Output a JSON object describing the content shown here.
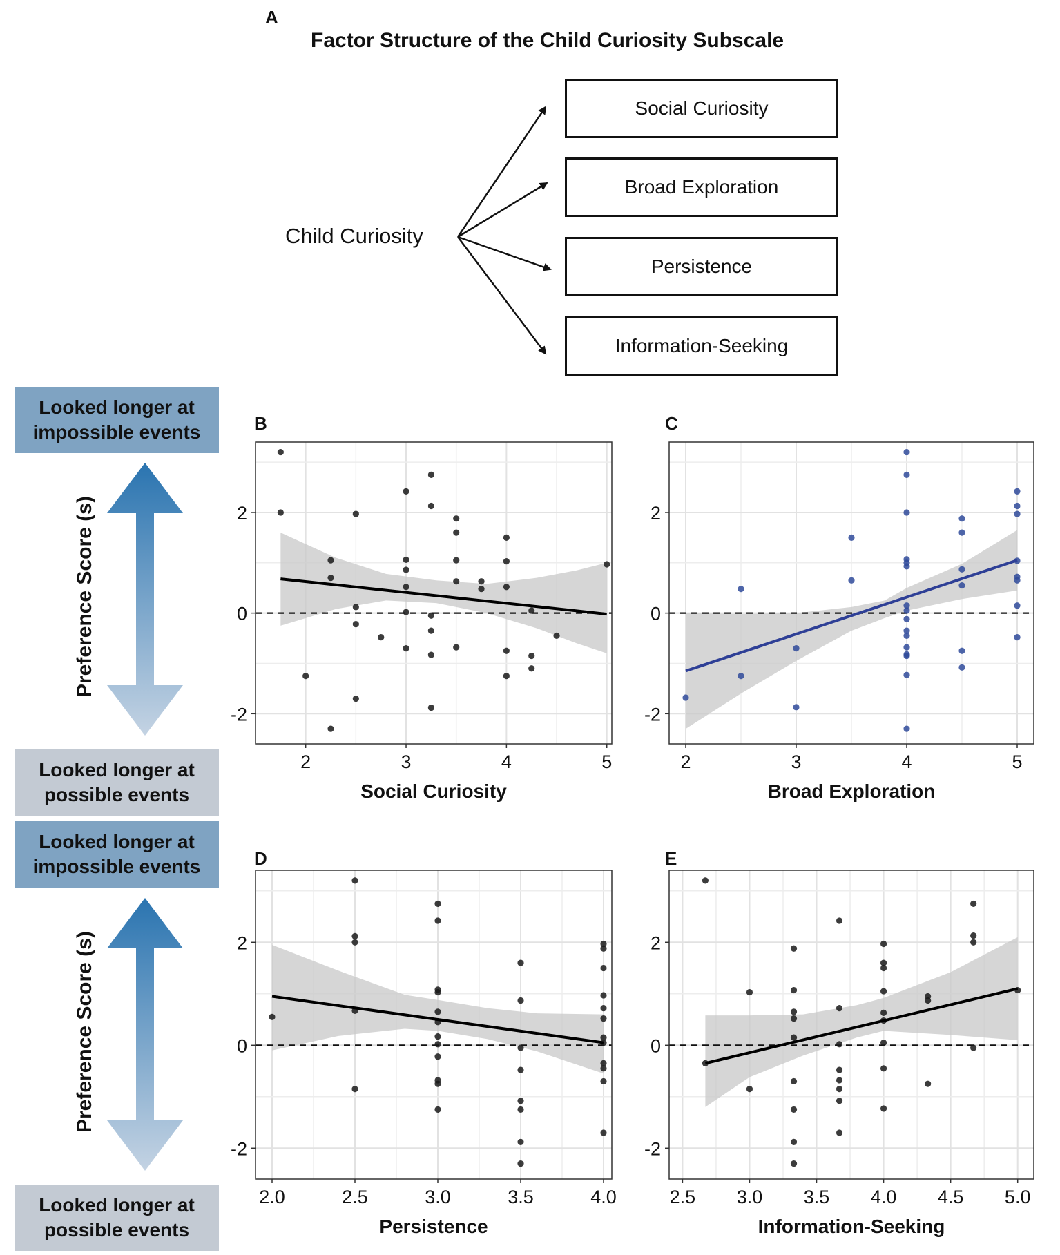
{
  "panel_a": {
    "letter": "A",
    "title": "Factor Structure of the Child Curiosity Subscale",
    "root": "Child Curiosity",
    "factors": [
      "Social Curiosity",
      "Broad Exploration",
      "Persistence",
      "Information-Seeking"
    ]
  },
  "side_labels": {
    "impossible": "Looked longer at\nimpossible events",
    "possible": "Looked longer at\npossible events",
    "y_axis": "Preference Score (s)"
  },
  "colors": {
    "point_black": "#1a1a1a",
    "point_blue": "#2f4a9a",
    "line_black": "#000000",
    "line_blue": "#2e3f96",
    "ribbon": "#c8c8c8",
    "arrow_top": "#2a74b0",
    "arrow_bottom": "#c4d3e3",
    "box_impossible": "#7fa3c2",
    "box_possible": "#c3cad3"
  },
  "chart_data": [
    {
      "panel": "B",
      "type": "scatter",
      "xlabel": "Social Curiosity",
      "ylabel": "Preference Score (s)",
      "xlim": [
        1.5,
        5.05
      ],
      "ylim": [
        -2.6,
        3.4
      ],
      "xticks": [
        2,
        3,
        4,
        5
      ],
      "xtick_labels": [
        "2",
        "3",
        "4",
        "5"
      ],
      "yticks": [
        -2,
        0,
        2
      ],
      "ytick_labels": [
        "-2",
        "0",
        "2"
      ],
      "color": "black",
      "trend": {
        "x1": 1.75,
        "y1": 0.68,
        "x2": 5.0,
        "y2": -0.02
      },
      "ribbon": {
        "x": [
          1.75,
          2.3,
          2.8,
          3.3,
          3.8,
          4.3,
          4.7,
          5.0
        ],
        "lower": [
          -0.25,
          0.08,
          0.25,
          0.2,
          0.0,
          -0.3,
          -0.6,
          -0.8
        ],
        "upper": [
          1.6,
          1.1,
          0.78,
          0.65,
          0.58,
          0.7,
          0.85,
          1.0
        ]
      },
      "points": [
        {
          "x": 1.75,
          "y": 3.2
        },
        {
          "x": 1.75,
          "y": 2.0
        },
        {
          "x": 2.0,
          "y": -1.25
        },
        {
          "x": 2.25,
          "y": 1.05
        },
        {
          "x": 2.25,
          "y": 0.7
        },
        {
          "x": 2.25,
          "y": -2.3
        },
        {
          "x": 2.5,
          "y": 1.97
        },
        {
          "x": 2.5,
          "y": 0.12
        },
        {
          "x": 2.5,
          "y": -0.22
        },
        {
          "x": 2.5,
          "y": -1.7
        },
        {
          "x": 2.75,
          "y": -0.48
        },
        {
          "x": 3.0,
          "y": 2.42
        },
        {
          "x": 3.0,
          "y": 1.06
        },
        {
          "x": 3.0,
          "y": 0.86
        },
        {
          "x": 3.0,
          "y": 0.52
        },
        {
          "x": 3.0,
          "y": 0.02
        },
        {
          "x": 3.0,
          "y": -0.7
        },
        {
          "x": 3.25,
          "y": 2.75
        },
        {
          "x": 3.25,
          "y": 2.13
        },
        {
          "x": 3.25,
          "y": -0.05
        },
        {
          "x": 3.25,
          "y": -0.35
        },
        {
          "x": 3.25,
          "y": -0.83
        },
        {
          "x": 3.25,
          "y": -1.88
        },
        {
          "x": 3.5,
          "y": 1.88
        },
        {
          "x": 3.5,
          "y": 1.6
        },
        {
          "x": 3.5,
          "y": 1.05
        },
        {
          "x": 3.5,
          "y": 0.63
        },
        {
          "x": 3.5,
          "y": -0.68
        },
        {
          "x": 3.75,
          "y": 0.63
        },
        {
          "x": 3.75,
          "y": 0.48
        },
        {
          "x": 4.0,
          "y": 1.5
        },
        {
          "x": 4.0,
          "y": 1.03
        },
        {
          "x": 4.0,
          "y": 0.52
        },
        {
          "x": 4.0,
          "y": -0.75
        },
        {
          "x": 4.0,
          "y": -1.25
        },
        {
          "x": 4.25,
          "y": 0.05
        },
        {
          "x": 4.25,
          "y": -0.85
        },
        {
          "x": 4.25,
          "y": -1.1
        },
        {
          "x": 4.5,
          "y": -0.45
        },
        {
          "x": 5.0,
          "y": 0.97
        }
      ]
    },
    {
      "panel": "C",
      "type": "scatter",
      "xlabel": "Broad Exploration",
      "ylabel": "Preference Score (s)",
      "xlim": [
        1.85,
        5.15
      ],
      "ylim": [
        -2.6,
        3.4
      ],
      "xticks": [
        2,
        3,
        4,
        5
      ],
      "xtick_labels": [
        "2",
        "3",
        "4",
        "5"
      ],
      "yticks": [
        -2,
        0,
        2
      ],
      "ytick_labels": [
        "-2",
        "0",
        "2"
      ],
      "color": "blue",
      "trend": {
        "x1": 2.0,
        "y1": -1.15,
        "x2": 5.0,
        "y2": 1.05
      },
      "ribbon": {
        "x": [
          2.0,
          2.5,
          3.0,
          3.5,
          3.8,
          4.0,
          4.5,
          5.0
        ],
        "lower": [
          -2.3,
          -1.6,
          -0.95,
          -0.35,
          -0.1,
          0.05,
          0.28,
          0.45
        ],
        "upper": [
          0.0,
          -0.02,
          0.0,
          0.12,
          0.25,
          0.5,
          0.98,
          1.65
        ]
      },
      "points": [
        {
          "x": 2.0,
          "y": -1.68
        },
        {
          "x": 2.5,
          "y": 0.48
        },
        {
          "x": 2.5,
          "y": -1.25
        },
        {
          "x": 3.0,
          "y": -0.7
        },
        {
          "x": 3.0,
          "y": -1.87
        },
        {
          "x": 3.5,
          "y": 1.5
        },
        {
          "x": 3.5,
          "y": 0.65
        },
        {
          "x": 4.0,
          "y": 3.2
        },
        {
          "x": 4.0,
          "y": 2.75
        },
        {
          "x": 4.0,
          "y": 2.0
        },
        {
          "x": 4.0,
          "y": 1.07
        },
        {
          "x": 4.0,
          "y": 1.0
        },
        {
          "x": 4.0,
          "y": 0.93
        },
        {
          "x": 4.0,
          "y": 0.15
        },
        {
          "x": 4.0,
          "y": 0.05
        },
        {
          "x": 4.0,
          "y": -0.12
        },
        {
          "x": 4.0,
          "y": -0.35
        },
        {
          "x": 4.0,
          "y": -0.45
        },
        {
          "x": 4.0,
          "y": -0.68
        },
        {
          "x": 4.0,
          "y": -0.82
        },
        {
          "x": 4.0,
          "y": -0.85
        },
        {
          "x": 4.0,
          "y": -1.23
        },
        {
          "x": 4.0,
          "y": -2.3
        },
        {
          "x": 4.5,
          "y": 1.88
        },
        {
          "x": 4.5,
          "y": 1.6
        },
        {
          "x": 4.5,
          "y": 0.87
        },
        {
          "x": 4.5,
          "y": 0.55
        },
        {
          "x": 4.5,
          "y": -0.75
        },
        {
          "x": 4.5,
          "y": -1.08
        },
        {
          "x": 5.0,
          "y": 2.42
        },
        {
          "x": 5.0,
          "y": 2.13
        },
        {
          "x": 5.0,
          "y": 1.97
        },
        {
          "x": 5.0,
          "y": 1.04
        },
        {
          "x": 5.0,
          "y": 0.72
        },
        {
          "x": 5.0,
          "y": 0.65
        },
        {
          "x": 5.0,
          "y": 0.15
        },
        {
          "x": 5.0,
          "y": -0.48
        }
      ]
    },
    {
      "panel": "D",
      "type": "scatter",
      "xlabel": "Persistence",
      "ylabel": "Preference Score (s)",
      "xlim": [
        1.9,
        4.05
      ],
      "ylim": [
        -2.6,
        3.4
      ],
      "xticks": [
        2.0,
        2.5,
        3.0,
        3.5,
        4.0
      ],
      "xtick_labels": [
        "2.0",
        "2.5",
        "3.0",
        "3.5",
        "4.0"
      ],
      "yticks": [
        -2,
        0,
        2
      ],
      "ytick_labels": [
        "-2",
        "0",
        "2"
      ],
      "color": "black",
      "trend": {
        "x1": 2.0,
        "y1": 0.95,
        "x2": 4.0,
        "y2": 0.05
      },
      "ribbon": {
        "x": [
          2.0,
          2.4,
          2.8,
          3.0,
          3.3,
          3.6,
          4.0
        ],
        "lower": [
          -0.1,
          0.18,
          0.32,
          0.28,
          0.12,
          -0.12,
          -0.55
        ],
        "upper": [
          1.95,
          1.45,
          0.98,
          0.88,
          0.72,
          0.62,
          0.6
        ]
      },
      "points": [
        {
          "x": 2.0,
          "y": 0.55
        },
        {
          "x": 2.5,
          "y": 3.2
        },
        {
          "x": 2.5,
          "y": 2.12
        },
        {
          "x": 2.5,
          "y": 2.0
        },
        {
          "x": 2.5,
          "y": 0.67
        },
        {
          "x": 2.5,
          "y": -0.85
        },
        {
          "x": 3.0,
          "y": 2.75
        },
        {
          "x": 3.0,
          "y": 2.42
        },
        {
          "x": 3.0,
          "y": 1.08
        },
        {
          "x": 3.0,
          "y": 1.03
        },
        {
          "x": 3.0,
          "y": 0.65
        },
        {
          "x": 3.0,
          "y": 0.45
        },
        {
          "x": 3.0,
          "y": 0.17
        },
        {
          "x": 3.0,
          "y": 0.02
        },
        {
          "x": 3.0,
          "y": -0.22
        },
        {
          "x": 3.0,
          "y": -0.68
        },
        {
          "x": 3.0,
          "y": -0.75
        },
        {
          "x": 3.0,
          "y": -1.25
        },
        {
          "x": 3.5,
          "y": 1.6
        },
        {
          "x": 3.5,
          "y": 0.87
        },
        {
          "x": 3.5,
          "y": -0.05
        },
        {
          "x": 3.5,
          "y": -0.48
        },
        {
          "x": 3.5,
          "y": -1.08
        },
        {
          "x": 3.5,
          "y": -1.25
        },
        {
          "x": 3.5,
          "y": -1.88
        },
        {
          "x": 3.5,
          "y": -2.3
        },
        {
          "x": 4.0,
          "y": 1.97
        },
        {
          "x": 4.0,
          "y": 1.88
        },
        {
          "x": 4.0,
          "y": 1.5
        },
        {
          "x": 4.0,
          "y": 0.97
        },
        {
          "x": 4.0,
          "y": 0.72
        },
        {
          "x": 4.0,
          "y": 0.52
        },
        {
          "x": 4.0,
          "y": 0.15
        },
        {
          "x": 4.0,
          "y": 0.05
        },
        {
          "x": 4.0,
          "y": -0.35
        },
        {
          "x": 4.0,
          "y": -0.45
        },
        {
          "x": 4.0,
          "y": -0.7
        },
        {
          "x": 4.0,
          "y": -1.7
        }
      ]
    },
    {
      "panel": "E",
      "type": "scatter",
      "xlabel": "Information-Seeking",
      "ylabel": "Preference Score (s)",
      "xlim": [
        2.4,
        5.12
      ],
      "ylim": [
        -2.6,
        3.4
      ],
      "xticks": [
        2.5,
        3.0,
        3.5,
        4.0,
        4.5,
        5.0
      ],
      "xtick_labels": [
        "2.5",
        "3.0",
        "3.5",
        "4.0",
        "4.5",
        "5.0"
      ],
      "yticks": [
        -2,
        0,
        2
      ],
      "ytick_labels": [
        "-2",
        "0",
        "2"
      ],
      "color": "black",
      "trend": {
        "x1": 2.67,
        "y1": -0.35,
        "x2": 5.0,
        "y2": 1.1
      },
      "ribbon": {
        "x": [
          2.67,
          3.0,
          3.4,
          3.8,
          4.0,
          4.5,
          5.0
        ],
        "lower": [
          -1.2,
          -0.62,
          -0.2,
          0.15,
          0.28,
          0.2,
          0.1
        ],
        "upper": [
          0.58,
          0.58,
          0.6,
          0.78,
          0.92,
          1.42,
          2.1
        ]
      },
      "points": [
        {
          "x": 2.67,
          "y": 3.2
        },
        {
          "x": 2.67,
          "y": -0.35
        },
        {
          "x": 3.0,
          "y": 1.03
        },
        {
          "x": 3.0,
          "y": -0.85
        },
        {
          "x": 3.33,
          "y": 1.88
        },
        {
          "x": 3.33,
          "y": 1.07
        },
        {
          "x": 3.33,
          "y": 0.65
        },
        {
          "x": 3.33,
          "y": 0.52
        },
        {
          "x": 3.33,
          "y": 0.15
        },
        {
          "x": 3.33,
          "y": -0.7
        },
        {
          "x": 3.33,
          "y": -1.25
        },
        {
          "x": 3.33,
          "y": -1.88
        },
        {
          "x": 3.33,
          "y": -2.3
        },
        {
          "x": 3.67,
          "y": 2.42
        },
        {
          "x": 3.67,
          "y": 0.72
        },
        {
          "x": 3.67,
          "y": 0.02
        },
        {
          "x": 3.67,
          "y": -0.48
        },
        {
          "x": 3.67,
          "y": -0.68
        },
        {
          "x": 3.67,
          "y": -0.85
        },
        {
          "x": 3.67,
          "y": -1.08
        },
        {
          "x": 3.67,
          "y": -1.7
        },
        {
          "x": 4.0,
          "y": 1.97
        },
        {
          "x": 4.0,
          "y": 1.6
        },
        {
          "x": 4.0,
          "y": 1.5
        },
        {
          "x": 4.0,
          "y": 1.05
        },
        {
          "x": 4.0,
          "y": 0.63
        },
        {
          "x": 4.0,
          "y": 0.48
        },
        {
          "x": 4.0,
          "y": 0.05
        },
        {
          "x": 4.0,
          "y": -0.45
        },
        {
          "x": 4.0,
          "y": -1.23
        },
        {
          "x": 4.33,
          "y": 0.95
        },
        {
          "x": 4.33,
          "y": 0.87
        },
        {
          "x": 4.33,
          "y": -0.75
        },
        {
          "x": 4.67,
          "y": 2.75
        },
        {
          "x": 4.67,
          "y": 2.13
        },
        {
          "x": 4.67,
          "y": 2.0
        },
        {
          "x": 4.67,
          "y": -0.05
        },
        {
          "x": 5.0,
          "y": 1.07
        }
      ]
    }
  ]
}
